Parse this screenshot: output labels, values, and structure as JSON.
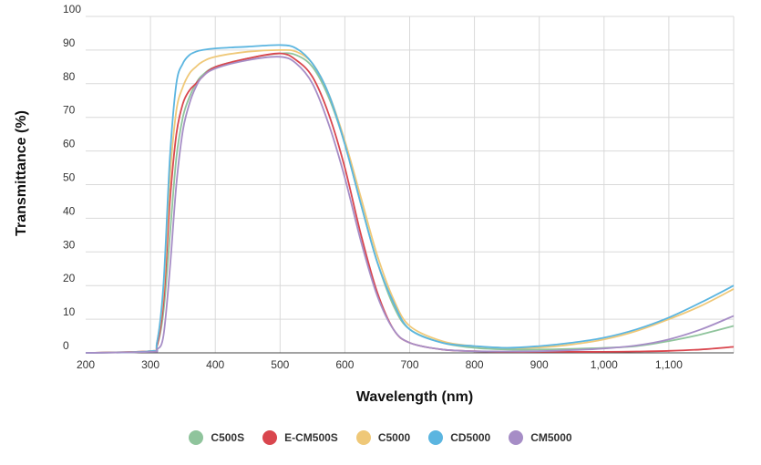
{
  "chart_data": {
    "type": "line",
    "title": "",
    "xlabel": "Wavelength (nm)",
    "ylabel": "Transmittance (%)",
    "xlim": [
      200,
      1200
    ],
    "ylim": [
      0,
      100
    ],
    "x_ticks": [
      200,
      300,
      400,
      500,
      600,
      700,
      800,
      900,
      1000,
      1100
    ],
    "x_tick_labels": [
      "200",
      "300",
      "400",
      "500",
      "600",
      "700",
      "800",
      "900",
      "1,000",
      "1,100"
    ],
    "y_ticks": [
      0,
      10,
      20,
      30,
      40,
      50,
      60,
      70,
      80,
      90,
      100
    ],
    "grid": true,
    "legend_position": "bottom-center",
    "x": [
      200,
      300,
      310,
      320,
      330,
      340,
      350,
      360,
      370,
      380,
      400,
      450,
      500,
      525,
      550,
      575,
      600,
      625,
      650,
      675,
      700,
      750,
      800,
      850,
      900,
      950,
      1000,
      1050,
      1100,
      1150,
      1200
    ],
    "series": [
      {
        "name": "C500S",
        "color": "#8fc49c",
        "values": [
          0,
          0.5,
          2,
          12,
          35,
          58,
          70,
          76,
          80,
          82.5,
          85,
          87.5,
          89,
          88.5,
          85,
          76,
          62,
          44,
          27,
          14,
          7,
          3,
          1.5,
          1,
          1,
          1.2,
          1.5,
          2,
          3.5,
          5.5,
          8
        ]
      },
      {
        "name": "E-CM500S",
        "color": "#d9464e",
        "values": [
          0,
          0.5,
          2,
          15,
          45,
          65,
          74,
          78,
          80,
          82,
          85,
          87.5,
          89,
          87,
          82,
          71,
          55,
          35,
          18,
          7,
          3,
          1,
          0.5,
          0.3,
          0.3,
          0.3,
          0.3,
          0.4,
          0.6,
          1,
          1.8
        ]
      },
      {
        "name": "C5000",
        "color": "#efc878",
        "values": [
          0,
          0.5,
          3,
          18,
          52,
          72,
          79,
          83,
          85,
          86.5,
          88,
          89.5,
          90,
          89.5,
          86,
          77,
          63,
          46,
          29,
          16,
          8,
          3.5,
          2,
          1.5,
          1.6,
          2.5,
          4,
          6.5,
          10,
          14,
          19
        ]
      },
      {
        "name": "CD5000",
        "color": "#5bb5e0",
        "values": [
          0,
          0.5,
          3,
          20,
          58,
          80,
          86,
          88.5,
          89.5,
          90,
          90.5,
          91,
          91.5,
          90.5,
          86,
          77,
          62,
          44,
          27,
          15,
          7,
          3,
          2,
          1.5,
          2,
          3,
          4.5,
          7,
          10.5,
          15,
          20
        ]
      },
      {
        "name": "CM5000",
        "color": "#a68dc6",
        "values": [
          0,
          0.3,
          1,
          5,
          25,
          50,
          66,
          74,
          79,
          82,
          84.5,
          87,
          88,
          86,
          80,
          68,
          52,
          33,
          17,
          7,
          3,
          1,
          0.5,
          0.4,
          0.5,
          0.8,
          1.3,
          2.2,
          4,
          7,
          11
        ]
      }
    ]
  }
}
